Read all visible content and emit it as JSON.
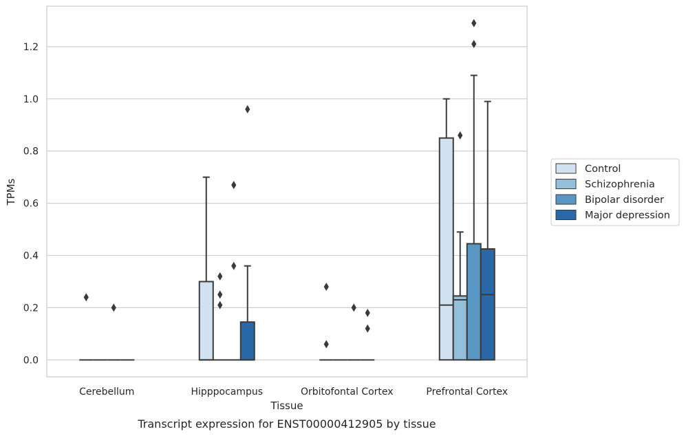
{
  "chart_data": {
    "type": "box",
    "caption": "Transcript expression for ENST00000412905 by tissue",
    "xlabel": "Tissue",
    "ylabel": "TPMs",
    "ylim": [
      -0.065,
      1.355
    ],
    "yticks": [
      0.0,
      0.2,
      0.4,
      0.6,
      0.8,
      1.0,
      1.2
    ],
    "ytick_labels": [
      "0.0",
      "0.2",
      "0.4",
      "0.6",
      "0.8",
      "1.0",
      "1.2"
    ],
    "grid": "horizontal",
    "legend_position": "right",
    "categories": [
      "Cerebellum",
      "Hipppocampus",
      "Orbitofontal Cortex",
      "Prefrontal Cortex"
    ],
    "series": [
      {
        "name": "Control",
        "color": "#d1e1f0",
        "boxes": [
          {
            "q1": 0,
            "median": 0,
            "q3": 0,
            "whisker_low": 0,
            "whisker_high": 0,
            "outliers": [
              0.24
            ]
          },
          {
            "q1": 0,
            "median": 0,
            "q3": 0.3,
            "whisker_low": 0,
            "whisker_high": 0.7,
            "outliers": []
          },
          {
            "q1": 0,
            "median": 0,
            "q3": 0,
            "whisker_low": 0,
            "whisker_high": 0,
            "outliers": [
              0.28,
              0.06
            ]
          },
          {
            "q1": 0,
            "median": 0.21,
            "q3": 0.85,
            "whisker_low": 0,
            "whisker_high": 1.0,
            "outliers": []
          }
        ]
      },
      {
        "name": "Schizophrenia",
        "color": "#93bfdb",
        "boxes": [
          {
            "q1": 0,
            "median": 0,
            "q3": 0,
            "whisker_low": 0,
            "whisker_high": 0,
            "outliers": []
          },
          {
            "q1": 0,
            "median": 0,
            "q3": 0,
            "whisker_low": 0,
            "whisker_high": 0,
            "outliers": [
              0.32,
              0.25,
              0.21
            ]
          },
          {
            "q1": 0,
            "median": 0,
            "q3": 0,
            "whisker_low": 0,
            "whisker_high": 0,
            "outliers": []
          },
          {
            "q1": 0,
            "median": 0.23,
            "q3": 0.245,
            "whisker_low": 0,
            "whisker_high": 0.49,
            "outliers": [
              0.86
            ]
          }
        ]
      },
      {
        "name": "Bipolar disorder",
        "color": "#5896c4",
        "boxes": [
          {
            "q1": 0,
            "median": 0,
            "q3": 0,
            "whisker_low": 0,
            "whisker_high": 0,
            "outliers": [
              0.2
            ]
          },
          {
            "q1": 0,
            "median": 0,
            "q3": 0,
            "whisker_low": 0,
            "whisker_high": 0,
            "outliers": [
              0.67,
              0.36
            ]
          },
          {
            "q1": 0,
            "median": 0,
            "q3": 0,
            "whisker_low": 0,
            "whisker_high": 0,
            "outliers": [
              0.2
            ]
          },
          {
            "q1": 0,
            "median": 0,
            "q3": 0.445,
            "whisker_low": 0,
            "whisker_high": 1.09,
            "outliers": [
              1.29,
              1.21
            ]
          }
        ]
      },
      {
        "name": "Major depression",
        "color": "#2b68a7",
        "boxes": [
          {
            "q1": 0,
            "median": 0,
            "q3": 0,
            "whisker_low": 0,
            "whisker_high": 0,
            "outliers": []
          },
          {
            "q1": 0,
            "median": 0,
            "q3": 0.145,
            "whisker_low": 0,
            "whisker_high": 0.36,
            "outliers": [
              0.96
            ]
          },
          {
            "q1": 0,
            "median": 0,
            "q3": 0,
            "whisker_low": 0,
            "whisker_high": 0,
            "outliers": [
              0.18,
              0.12
            ]
          },
          {
            "q1": 0,
            "median": 0.25,
            "q3": 0.425,
            "whisker_low": 0,
            "whisker_high": 0.99,
            "outliers": []
          }
        ]
      }
    ]
  }
}
